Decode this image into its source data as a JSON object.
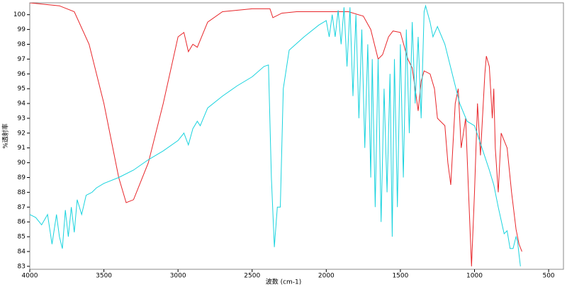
{
  "chart_data": {
    "type": "line",
    "xlabel": "波数 (cm-1)",
    "ylabel": "%透射率",
    "xlim": [
      4000,
      400
    ],
    "ylim": [
      82.8,
      100.8
    ],
    "xticks": [
      4000,
      3500,
      3000,
      2500,
      2000,
      1500,
      1000,
      500
    ],
    "yticks": [
      83,
      84,
      85,
      86,
      87,
      88,
      89,
      90,
      91,
      92,
      93,
      94,
      95,
      96,
      97,
      98,
      99,
      100
    ],
    "grid": false,
    "series": [
      {
        "name": null,
        "color": "#e8262a",
        "x": [
          4000,
          3800,
          3700,
          3600,
          3500,
          3400,
          3350,
          3300,
          3200,
          3100,
          3000,
          2960,
          2930,
          2900,
          2870,
          2800,
          2700,
          2500,
          2380,
          2360,
          2300,
          2200,
          2000,
          1850,
          1750,
          1700,
          1650,
          1620,
          1580,
          1550,
          1500,
          1450,
          1420,
          1400,
          1380,
          1360,
          1340,
          1300,
          1270,
          1250,
          1230,
          1200,
          1180,
          1160,
          1130,
          1110,
          1090,
          1060,
          1040,
          1020,
          1000,
          980,
          960,
          930,
          920,
          900,
          880,
          870,
          860,
          840,
          820,
          800,
          780,
          750,
          720,
          700,
          680
        ],
        "values": [
          100.8,
          100.6,
          100.2,
          98,
          94,
          89,
          87.3,
          87.5,
          90,
          94,
          98.5,
          98.8,
          97.5,
          98,
          97.8,
          99.5,
          100.2,
          100.4,
          100.4,
          99.8,
          100.1,
          100.2,
          100.2,
          100.2,
          99.9,
          99,
          97,
          97.3,
          98.5,
          98.9,
          98.8,
          97,
          96.4,
          95,
          93.5,
          95.5,
          96.2,
          96,
          95,
          93,
          92.8,
          92.5,
          90,
          88.5,
          94,
          95,
          91,
          93,
          88,
          83,
          88,
          94,
          90.5,
          96,
          97.2,
          96.5,
          93,
          95,
          91,
          88,
          92,
          91.5,
          91,
          88,
          85.5,
          84.5,
          84
        ]
      },
      {
        "name": null,
        "color": "#19d3de",
        "x": [
          4000,
          3960,
          3920,
          3880,
          3850,
          3820,
          3800,
          3780,
          3760,
          3740,
          3720,
          3700,
          3680,
          3650,
          3620,
          3580,
          3550,
          3500,
          3400,
          3300,
          3200,
          3100,
          3000,
          2960,
          2930,
          2900,
          2870,
          2850,
          2800,
          2700,
          2600,
          2500,
          2420,
          2390,
          2370,
          2350,
          2330,
          2310,
          2290,
          2250,
          2150,
          2050,
          2000,
          1980,
          1960,
          1940,
          1920,
          1900,
          1880,
          1860,
          1840,
          1820,
          1800,
          1780,
          1760,
          1740,
          1720,
          1700,
          1690,
          1670,
          1650,
          1630,
          1610,
          1590,
          1570,
          1555,
          1540,
          1520,
          1500,
          1480,
          1460,
          1440,
          1420,
          1400,
          1380,
          1360,
          1340,
          1330,
          1300,
          1280,
          1250,
          1200,
          1150,
          1100,
          1050,
          1000,
          950,
          900,
          870,
          840,
          800,
          780,
          760,
          740,
          720,
          710,
          700,
          690
        ],
        "values": [
          86.5,
          86.3,
          85.8,
          86.5,
          84.5,
          86.5,
          85,
          84.2,
          86.8,
          85,
          87,
          85.3,
          87.5,
          86.5,
          87.8,
          88,
          88.3,
          88.6,
          89,
          89.5,
          90.2,
          90.8,
          91.5,
          92,
          91.2,
          92.3,
          92.8,
          92.5,
          93.7,
          94.5,
          95.2,
          95.8,
          96.5,
          96.6,
          89,
          84.3,
          87,
          87,
          95,
          97.6,
          98.5,
          99.3,
          99.6,
          98.5,
          100,
          98.5,
          100.3,
          98,
          100.5,
          96.5,
          100.5,
          94.5,
          100,
          93,
          99,
          91,
          98,
          89,
          97,
          87,
          97,
          86,
          95,
          88,
          96,
          85,
          97,
          87,
          98,
          89,
          99,
          92,
          99.5,
          94,
          98.5,
          93,
          100.2,
          100.6,
          99.5,
          98.5,
          99.2,
          98,
          96,
          94,
          92.8,
          92.5,
          91,
          89.5,
          88.5,
          87,
          85.2,
          85.4,
          84.2,
          84.2,
          85,
          84.7,
          83.8,
          83
        ]
      }
    ]
  }
}
